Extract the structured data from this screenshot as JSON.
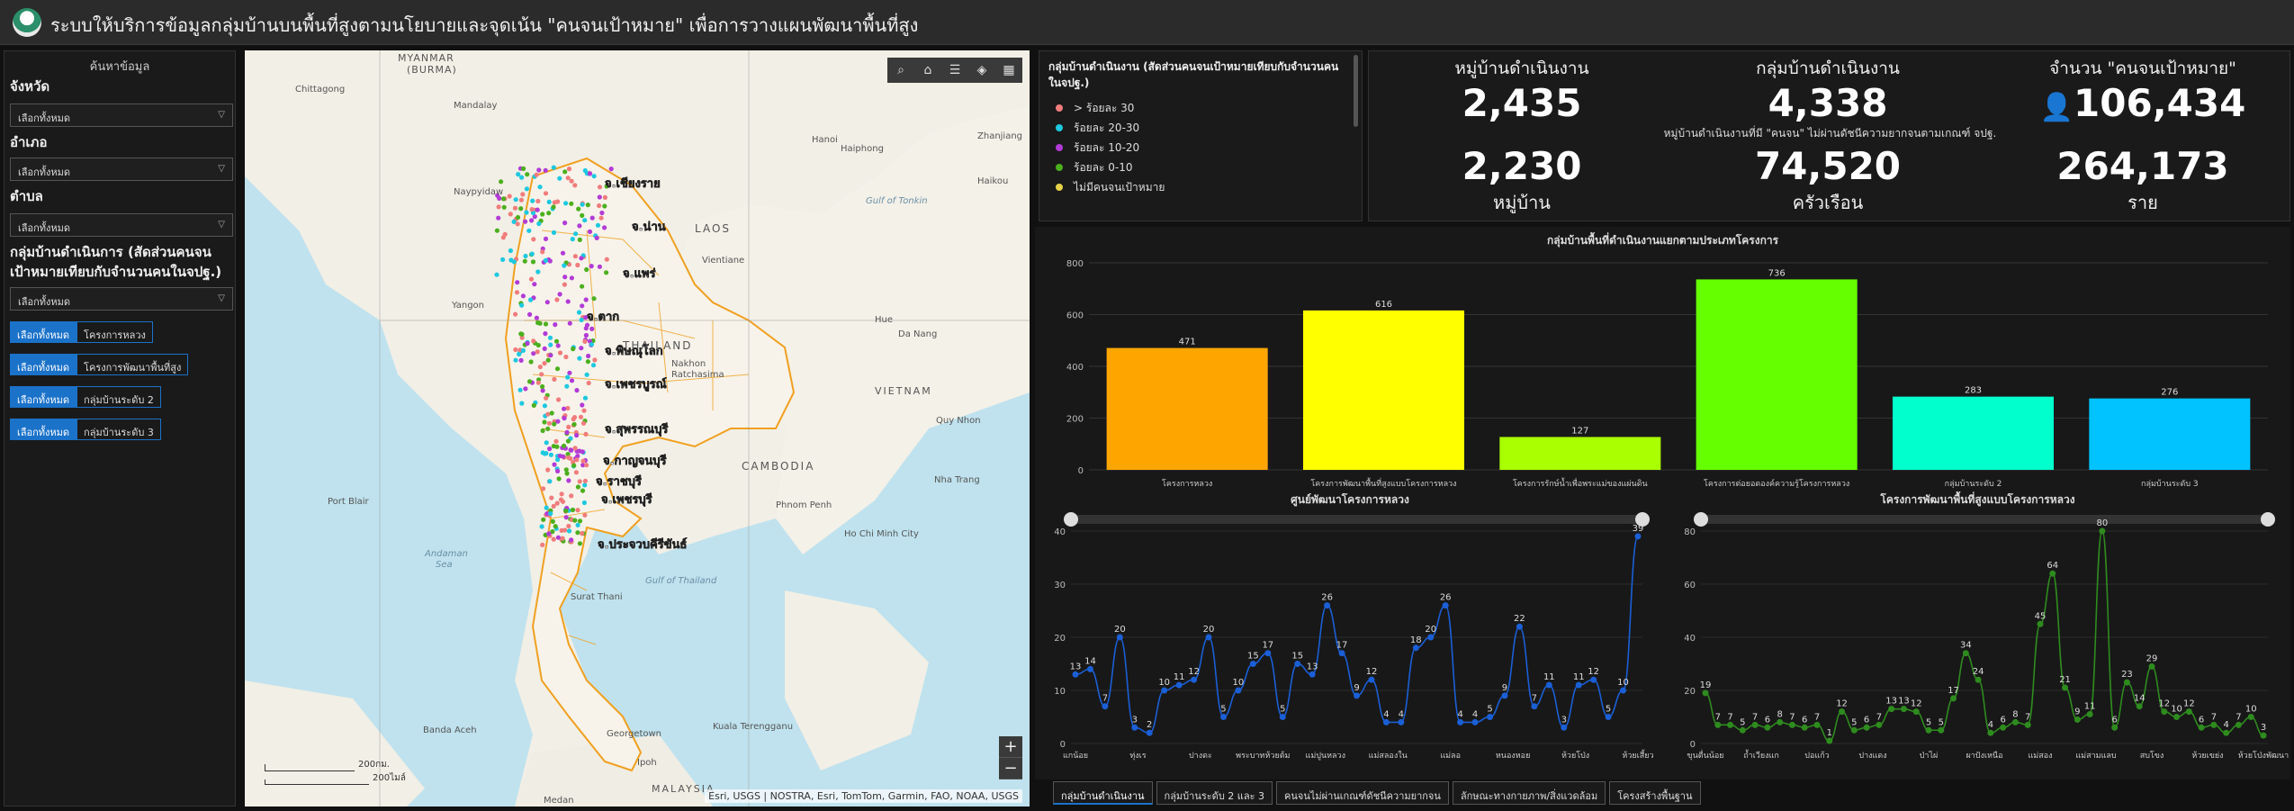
{
  "header": {
    "title": "ระบบให้บริการข้อมูลกลุ่มบ้านบนพื้นที่สูงตามนโยบายและจุดเน้น \"คนจนเป้าหมาย\" เพื่อการวางแผนพัฒนาพื้นที่สูง"
  },
  "sidebar": {
    "title": "ค้นหาข้อมูล",
    "province_label": "จังหวัด",
    "district_label": "อำเภอ",
    "subdistrict_label": "ตำบล",
    "group_label": "กลุ่มบ้านดำเนินการ (สัดส่วนคนจนเป้าหมายเทียบกับจำนวนคนในจปฐ.)",
    "select_all": "เลือกทั้งหมด",
    "buttons": [
      {
        "selected": "เลือกทั้งหมด",
        "option": "โครงการหลวง"
      },
      {
        "selected": "เลือกทั้งหมด",
        "option": "โครงการพัฒนาพื้นที่สูง"
      },
      {
        "selected": "เลือกทั้งหมด",
        "option": "กลุ่มบ้านระดับ 2"
      },
      {
        "selected": "เลือกทั้งหมด",
        "option": "กลุ่มบ้านระดับ 3"
      }
    ]
  },
  "map": {
    "labels": {
      "myanmar": "MYANMAR",
      "burma": "(BURMA)",
      "laos": "LAOS",
      "thailand": "THAILAND",
      "cambodia": "CAMBODIA",
      "vietnam": "VIETNAM",
      "malaysia": "MALAYSIA",
      "andaman": "Andaman",
      "sea": "Sea",
      "gulf_tonkin": "Gulf of Tonkin",
      "gulf_thailand": "Gulf of Thailand",
      "chittagong": "Chittagong",
      "mandalay": "Mandalay",
      "naypyidaw": "Naypyidaw",
      "yangon": "Yangon",
      "hanoi": "Hanoi",
      "haiphong": "Haiphong",
      "zhanjiang": "Zhanjiang",
      "haikou": "Haikou",
      "vientiane": "Vientiane",
      "hue": "Hue",
      "danang": "Da Nang",
      "nakhon": "Nakhon",
      "ratchasima": "Ratchasima",
      "quynhon": "Quy Nhon",
      "nhatrang": "Nha Trang",
      "phnompenh": "Phnom Penh",
      "hcmc": "Ho Chi Minh City",
      "portblair": "Port Blair",
      "suratthani": "Surat Thani",
      "bandaaceh": "Banda Aceh",
      "georgetown": "Georgetown",
      "kualaterengganu": "Kuala Terengganu",
      "ipoh": "Ipoh",
      "medan": "Medan"
    },
    "province_labels": [
      "จ.เชียงราย",
      "จ.น่าน",
      "จ.แพร่",
      "จ.ตาก",
      "จ.พิษณุโลก",
      "จ.เพชรบูรณ์",
      "จ.สุพรรณบุรี",
      "จ.กาญจนบุรี",
      "จ.ราชบุรี",
      "จ.เพชรบุรี",
      "จ.ประจวบคีรีขันธ์"
    ],
    "scale_km": "200กม.",
    "scale_mi": "200ไมล์",
    "attribution": "Esri, USGS | NOSTRA, Esri, TomTom, Garmin, FAO, NOAA, USGS",
    "tools": [
      "search-icon",
      "home-icon",
      "list-icon",
      "layers-icon",
      "grid-icon"
    ]
  },
  "legend": {
    "title": "กลุ่มบ้านดำเนินงาน (สัดส่วนคนจนเป้าหมายเทียบกับจำนวนคนในจปฐ.)",
    "items": [
      {
        "label": "> ร้อยละ 30",
        "color": "#f07c7c"
      },
      {
        "label": "ร้อยละ 20-30",
        "color": "#1ec8e0"
      },
      {
        "label": "ร้อยละ 10-20",
        "color": "#b23bd6"
      },
      {
        "label": "ร้อยละ 0-10",
        "color": "#4caf1e"
      },
      {
        "label": "ไม่มีคนจนเป้าหมาย",
        "color": "#e6d24a"
      }
    ]
  },
  "kpi": {
    "villages_title": "หมู่บ้านดำเนินงาน",
    "villages_value": "2,435",
    "groups_title": "กลุ่มบ้านดำเนินงาน",
    "groups_value": "4,338",
    "poor_title": "จำนวน \"คนจนเป้าหมาย\"",
    "poor_value": "106,434",
    "subtitle": "หมู่บ้านดำเนินงานที่มี \"คนจน\" ไม่ผ่านดัชนีความยากจนตามเกณฑ์ จปฐ.",
    "v2_value": "2,230",
    "v2_unit": "หมู่บ้าน",
    "v3_value": "74,520",
    "v3_unit": "ครัวเรือน",
    "v4_value": "264,173",
    "v4_unit": "ราย"
  },
  "chart_data": [
    {
      "type": "bar",
      "title": "กลุ่มบ้านพื้นที่ดำเนินงานแยกตามประเภทโครงการ",
      "categories": [
        "โครงการหลวง",
        "โครงการพัฒนาพื้นที่สูงแบบโครงการหลวง",
        "โครงการรักษ์น้ำเพื่อพระแม่ของแผ่นดิน",
        "โครงการต่อยอดองค์ความรู้โครงการหลวง",
        "กลุ่มบ้านระดับ 2",
        "กลุ่มบ้านระดับ 3"
      ],
      "values": [
        471,
        616,
        127,
        736,
        283,
        276
      ],
      "colors": [
        "#ffa500",
        "#ffff00",
        "#aaff00",
        "#66ff00",
        "#00ffcc",
        "#00c3ff"
      ],
      "ylim": [
        0,
        800
      ],
      "yticks": [
        0,
        200,
        400,
        600,
        800
      ]
    },
    {
      "type": "line",
      "title": "ศูนย์พัฒนาโครงการหลวง",
      "color": "#1a5fd6",
      "values": [
        13,
        14,
        7,
        20,
        3,
        2,
        10,
        11,
        12,
        20,
        5,
        10,
        15,
        17,
        5,
        15,
        13,
        26,
        17,
        9,
        12,
        4,
        4,
        18,
        20,
        26,
        4,
        4,
        5,
        9,
        22,
        7,
        11,
        3,
        11,
        12,
        5,
        10,
        39
      ],
      "xtick_labels": [
        "แกน้อย",
        "ทุ่งเร",
        "ปางดะ",
        "พระบาทห้วยต้ม",
        "แม่ปูนหลวง",
        "แม่สลองใน",
        "แม่ลอ",
        "หนองหอย",
        "ห้วยโป่ง",
        "ห้วยเสี้ยว"
      ],
      "ylim": [
        0,
        40
      ],
      "yticks": [
        0,
        10,
        20,
        30,
        40
      ]
    },
    {
      "type": "line",
      "title": "โครงการพัฒนาพื้นที่สูงแบบโครงการหลวง",
      "color": "#2e8b1e",
      "values": [
        19,
        7,
        7,
        5,
        7,
        6,
        8,
        7,
        6,
        7,
        1,
        12,
        5,
        6,
        7,
        13,
        13,
        12,
        5,
        5,
        17,
        34,
        24,
        4,
        6,
        8,
        7,
        45,
        64,
        21,
        9,
        11,
        80,
        6,
        23,
        14,
        29,
        12,
        10,
        12,
        6,
        7,
        4,
        7,
        10,
        3
      ],
      "xtick_labels": [
        "ขุนตื่นน้อย",
        "ถ้ำเวียงแก",
        "ปอแก้ว",
        "ปางแดง",
        "ป่าไผ่",
        "ผาปังเหนือ",
        "แม่สอง",
        "แม่สามแลบ",
        "สบโขง",
        "ห้วยเขย่ง",
        "ห้วยโป่งพัฒนา"
      ],
      "ylim": [
        0,
        80
      ],
      "yticks": [
        0,
        20,
        40,
        60,
        80
      ]
    }
  ],
  "tabs": [
    "กลุ่มบ้านดำเนินงาน",
    "กลุ่มบ้านระดับ 2 และ 3",
    "คนจนไม่ผ่านเกณฑ์ดัชนีความยากจน",
    "ลักษณะทางกายภาพ/สิ่งแวดล้อม",
    "โครงสร้างพื้นฐาน"
  ]
}
